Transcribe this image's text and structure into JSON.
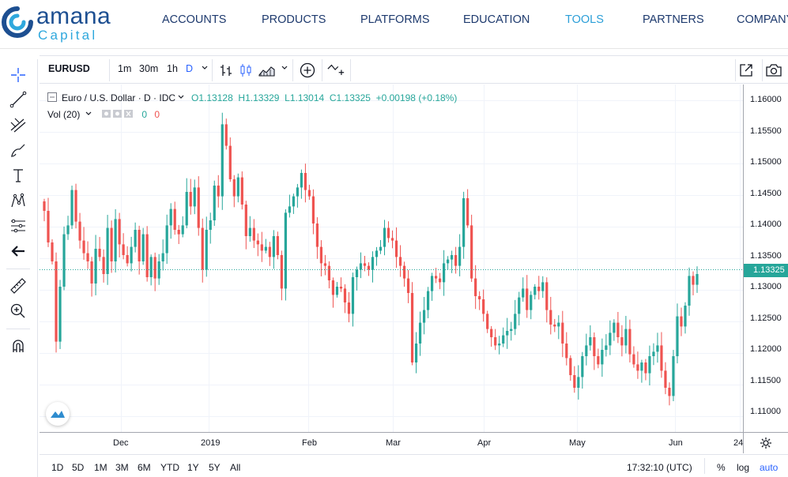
{
  "brand": {
    "name": "amana",
    "sub": "Capital",
    "primary": "#1d4f91",
    "accent": "#2c9fd8"
  },
  "nav": [
    {
      "label": "ACCOUNTS",
      "active": false
    },
    {
      "label": "PRODUCTS",
      "active": false
    },
    {
      "label": "PLATFORMS",
      "active": false
    },
    {
      "label": "EDUCATION",
      "active": false
    },
    {
      "label": "TOOLS",
      "active": true
    },
    {
      "label": "PARTNERS",
      "active": false
    },
    {
      "label": "COMPANY",
      "active": false
    }
  ],
  "left_tools": [
    "crosshair-icon",
    "trend-line-icon",
    "pitchfork-icon",
    "brush-icon",
    "text-icon",
    "pattern-icon",
    "prediction-icon",
    "back-arrow-icon",
    "ruler-icon",
    "zoom-in-icon",
    "magnet-icon"
  ],
  "toolbar": {
    "symbol": "EURUSD",
    "intervals": [
      {
        "label": "1m",
        "active": false
      },
      {
        "label": "30m",
        "active": false
      },
      {
        "label": "1h",
        "active": false
      },
      {
        "label": "D",
        "active": true
      }
    ],
    "icons": [
      "bar-chart-icon",
      "candlestick-icon",
      "area-chart-icon",
      "add-indicator-icon",
      "compare-icon",
      "fullscreen-icon",
      "snapshot-icon"
    ]
  },
  "legend": {
    "title": "Euro / U.S. Dollar · D · IDC",
    "open": "O1.13128",
    "high": "H1.13329",
    "low": "L1.13014",
    "close": "C1.13325",
    "change": "+0.00198 (+0.18%)",
    "volume_label": "Vol (20)",
    "volume_values": [
      "0",
      "0"
    ]
  },
  "price_axis": {
    "ticks": [
      "1.16000",
      "1.15500",
      "1.15000",
      "1.14500",
      "1.14000",
      "1.13500",
      "1.13000",
      "1.12500",
      "1.12000",
      "1.11500",
      "1.11000"
    ],
    "last_price": "1.13325"
  },
  "time_axis": [
    "Dec",
    "2019",
    "Feb",
    "Mar",
    "Apr",
    "May",
    "Jun",
    "24"
  ],
  "bottom": {
    "ranges": [
      "1D",
      "5D",
      "1M",
      "3M",
      "6M",
      "YTD",
      "1Y",
      "5Y",
      "All"
    ],
    "clock": "17:32:10 (UTC)",
    "percent": "%",
    "log": "log",
    "auto": "auto"
  },
  "colors": {
    "up": "#26a69a",
    "down": "#ef5350"
  },
  "chart_data": {
    "type": "candlestick",
    "symbol": "EURUSD",
    "interval": "D",
    "ylim": [
      1.1075,
      1.1625
    ],
    "xlabels": [
      "Dec",
      "2019",
      "Feb",
      "Mar",
      "Apr",
      "May",
      "Jun",
      "24"
    ],
    "closes": [
      1.1425,
      1.1375,
      1.1345,
      1.1218,
      1.1305,
      1.1388,
      1.1402,
      1.1458,
      1.1408,
      1.1378,
      1.1358,
      1.1345,
      1.131,
      1.1365,
      1.1352,
      1.1325,
      1.1398,
      1.1345,
      1.1412,
      1.1372,
      1.1355,
      1.1342,
      1.1368,
      1.1395,
      1.1345,
      1.1388,
      1.132,
      1.1352,
      1.1318,
      1.1345,
      1.1358,
      1.1402,
      1.1428,
      1.1395,
      1.1388,
      1.1402,
      1.1455,
      1.1432,
      1.1462,
      1.1398,
      1.1332,
      1.1395,
      1.141,
      1.1465,
      1.1448,
      1.1562,
      1.1528,
      1.1475,
      1.1448,
      1.1478,
      1.1435,
      1.1385,
      1.1398,
      1.1378,
      1.1372,
      1.1362,
      1.1368,
      1.1352,
      1.1385,
      1.1355,
      1.1302,
      1.1422,
      1.1432,
      1.1448,
      1.1462,
      1.1485,
      1.1458,
      1.1448,
      1.1405,
      1.1368,
      1.1342,
      1.1338,
      1.1315,
      1.1292,
      1.1305,
      1.1302,
      1.128,
      1.1262,
      1.132,
      1.1332,
      1.1342,
      1.1338,
      1.1332,
      1.1352,
      1.1362,
      1.1368,
      1.1398,
      1.1382,
      1.1378,
      1.1352,
      1.1338,
      1.1318,
      1.1295,
      1.1185,
      1.1215,
      1.1248,
      1.1268,
      1.1298,
      1.1322,
      1.1318,
      1.1312,
      1.1342,
      1.1348,
      1.1355,
      1.1338,
      1.1368,
      1.1445,
      1.1402,
      1.1318,
      1.129,
      1.1285,
      1.1262,
      1.1238,
      1.1225,
      1.1212,
      1.1215,
      1.1228,
      1.1235,
      1.1238,
      1.1262,
      1.1288,
      1.1302,
      1.1268,
      1.1292,
      1.1305,
      1.1298,
      1.1312,
      1.1268,
      1.1245,
      1.1242,
      1.1248,
      1.1215,
      1.1192,
      1.1165,
      1.1145,
      1.1162,
      1.1195,
      1.1212,
      1.1225,
      1.1195,
      1.1182,
      1.1205,
      1.1212,
      1.1232,
      1.1248,
      1.1225,
      1.1212,
      1.1238,
      1.1198,
      1.1182,
      1.1172,
      1.1185,
      1.1168,
      1.1195,
      1.1202,
      1.1212,
      1.1172,
      1.1145,
      1.1132,
      1.1195,
      1.1258,
      1.1242,
      1.1275,
      1.1322,
      1.1308,
      1.1325
    ]
  }
}
